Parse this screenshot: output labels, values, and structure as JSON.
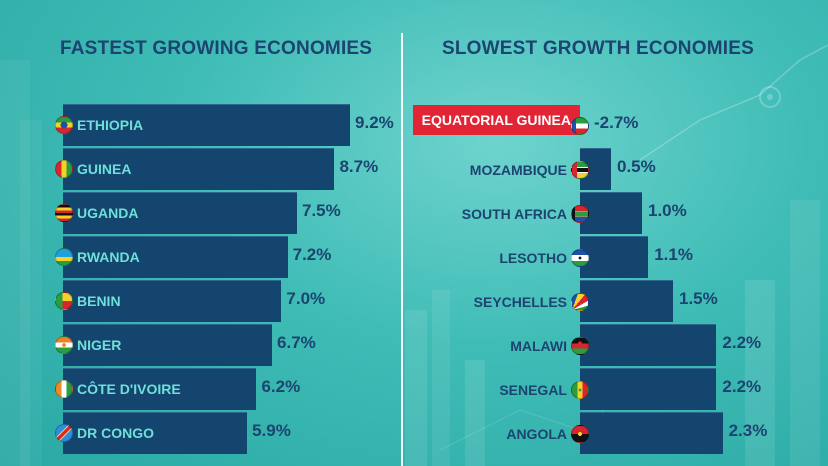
{
  "chart_data": [
    {
      "type": "bar",
      "title": "FASTEST GROWING ECONOMIES",
      "categories": [
        "ETHIOPIA",
        "GUINEA",
        "UGANDA",
        "RWANDA",
        "BENIN",
        "NIGER",
        "CÔTE D'IVOIRE",
        "DR CONGO"
      ],
      "values": [
        9.2,
        8.7,
        7.5,
        7.2,
        7.0,
        6.7,
        6.2,
        5.9
      ],
      "value_labels": [
        "9.2%",
        "8.7%",
        "7.5%",
        "7.2%",
        "7.0%",
        "6.7%",
        "6.2%",
        "5.9%"
      ],
      "flags": [
        "ethiopia-flag-icon",
        "guinea-flag-icon",
        "uganda-flag-icon",
        "rwanda-flag-icon",
        "benin-flag-icon",
        "niger-flag-icon",
        "cote-divoire-flag-icon",
        "dr-congo-flag-icon"
      ],
      "bar_color": "#14456f",
      "label_color": "#6fe0d8"
    },
    {
      "type": "bar",
      "title": "SLOWEST GROWTH ECONOMIES",
      "categories": [
        "EQUATORIAL GUINEA",
        "MOZAMBIQUE",
        "SOUTH AFRICA",
        "LESOTHO",
        "SEYCHELLES",
        "MALAWI",
        "SENEGAL",
        "ANGOLA"
      ],
      "values": [
        -2.7,
        0.5,
        1.0,
        1.1,
        1.5,
        2.2,
        2.2,
        2.3
      ],
      "value_labels": [
        "-2.7%",
        "0.5%",
        "1.0%",
        "1.1%",
        "1.5%",
        "2.2%",
        "2.2%",
        "2.3%"
      ],
      "flags": [
        "equatorial-guinea-flag-icon",
        "mozambique-flag-icon",
        "south-africa-flag-icon",
        "lesotho-flag-icon",
        "seychelles-flag-icon",
        "malawi-flag-icon",
        "senegal-flag-icon",
        "angola-flag-icon"
      ],
      "bar_color": "#14456f",
      "highlight_color": "#e32434",
      "label_color": "#1b4470"
    }
  ]
}
